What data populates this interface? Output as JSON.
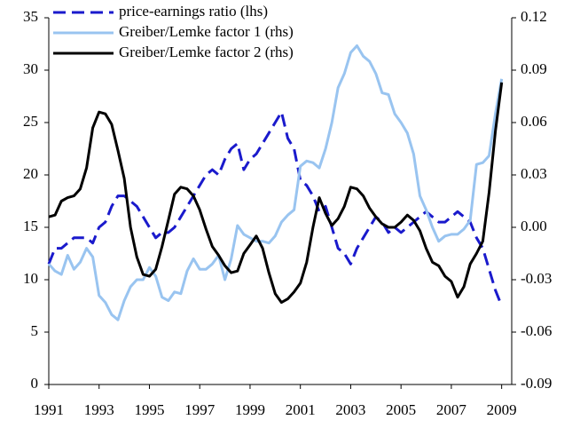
{
  "chart_data": {
    "type": "line",
    "x": [
      1991,
      1991.25,
      1991.5,
      1991.75,
      1992,
      1992.25,
      1992.5,
      1992.75,
      1993,
      1993.25,
      1993.5,
      1993.75,
      1994,
      1994.25,
      1994.5,
      1994.75,
      1995,
      1995.25,
      1995.5,
      1995.75,
      1996,
      1996.25,
      1996.5,
      1996.75,
      1997,
      1997.25,
      1997.5,
      1997.75,
      1998,
      1998.25,
      1998.5,
      1998.75,
      1999,
      1999.25,
      1999.5,
      1999.75,
      2000,
      2000.25,
      2000.5,
      2000.75,
      2001,
      2001.25,
      2001.5,
      2001.75,
      2002,
      2002.25,
      2002.5,
      2002.75,
      2003,
      2003.25,
      2003.5,
      2003.75,
      2004,
      2004.25,
      2004.5,
      2004.75,
      2005,
      2005.25,
      2005.5,
      2005.75,
      2006,
      2006.25,
      2006.5,
      2006.75,
      2007,
      2007.25,
      2007.5,
      2007.75,
      2008,
      2008.25,
      2008.5,
      2008.75,
      2009
    ],
    "series": [
      {
        "name": "price-earnings ratio (lhs)",
        "color": "#1a1acc",
        "dashed": true,
        "values": [
          11.5,
          13,
          13,
          13.5,
          14,
          14,
          14,
          13.5,
          15,
          15.5,
          17,
          18,
          18,
          17.5,
          17,
          16,
          15,
          14,
          14.5,
          14.5,
          15,
          16,
          17,
          18,
          19,
          20,
          20.5,
          20,
          21.5,
          22.5,
          23,
          20.5,
          21.5,
          22,
          23,
          24,
          25,
          26,
          23.5,
          22.5,
          19.5,
          19,
          18,
          16.5,
          17,
          15,
          13,
          12.5,
          11.5,
          13,
          14,
          15,
          16,
          15.5,
          14.5,
          15,
          14.5,
          15,
          15.5,
          16,
          16.5,
          16,
          15.5,
          15.5,
          16,
          16.5,
          16,
          15.5,
          14,
          13,
          11,
          9,
          7.5
        ]
      },
      {
        "name": "Greiber/Lemke factor 1 (rhs)",
        "color": "#99c4f0",
        "axis": "y2",
        "values": [
          -0.021,
          -0.025,
          -0.027,
          -0.016,
          -0.024,
          -0.02,
          -0.012,
          -0.017,
          -0.039,
          -0.043,
          -0.05,
          -0.053,
          -0.042,
          -0.034,
          -0.03,
          -0.03,
          -0.023,
          -0.028,
          -0.04,
          -0.042,
          -0.037,
          -0.038,
          -0.025,
          -0.018,
          -0.024,
          -0.024,
          -0.021,
          -0.016,
          -0.03,
          -0.018,
          0.001,
          -0.004,
          -0.006,
          -0.008,
          -0.008,
          -0.009,
          -0.005,
          0.003,
          0.007,
          0.01,
          0.035,
          0.038,
          0.037,
          0.034,
          0.045,
          0.06,
          0.08,
          0.088,
          0.1,
          0.104,
          0.098,
          0.095,
          0.088,
          0.077,
          0.076,
          0.065,
          0.06,
          0.054,
          0.042,
          0.018,
          0.01,
          0,
          -0.008,
          -0.005,
          -0.004,
          -0.004,
          -0.001,
          0.004,
          0.036,
          0.037,
          0.041,
          0.065,
          0.085
        ]
      },
      {
        "name": "Greiber/Lemke factor 2 (rhs)",
        "color": "#000000",
        "axis": "y2",
        "values": [
          0.006,
          0.007,
          0.015,
          0.017,
          0.018,
          0.022,
          0.034,
          0.057,
          0.066,
          0.065,
          0.059,
          0.044,
          0.028,
          0,
          -0.017,
          -0.027,
          -0.028,
          -0.024,
          -0.011,
          0.004,
          0.019,
          0.023,
          0.022,
          0.018,
          0.01,
          -0.001,
          -0.011,
          -0.016,
          -0.022,
          -0.026,
          -0.025,
          -0.015,
          -0.01,
          -0.005,
          -0.012,
          -0.026,
          -0.038,
          -0.043,
          -0.041,
          -0.037,
          -0.032,
          -0.02,
          0,
          0.017,
          0.008,
          0.001,
          0.005,
          0.012,
          0.023,
          0.022,
          0.018,
          0.011,
          0.006,
          0.002,
          0,
          0,
          0.003,
          0.007,
          0.004,
          -0.002,
          -0.012,
          -0.02,
          -0.022,
          -0.028,
          -0.031,
          -0.04,
          -0.034,
          -0.021,
          -0.015,
          -0.008,
          0.02,
          0.055,
          0.083
        ]
      }
    ],
    "xlim": [
      1991,
      2009.4
    ],
    "xticks": [
      1991,
      1993,
      1995,
      1997,
      1999,
      2001,
      2003,
      2005,
      2007,
      2009
    ],
    "ylim": [
      0,
      35
    ],
    "yticks": [
      0,
      5,
      10,
      15,
      20,
      25,
      30,
      35
    ],
    "y2lim": [
      -0.09,
      0.12
    ],
    "y2ticks": [
      -0.09,
      -0.06,
      -0.03,
      {
        "value": 0,
        "label": "0.00"
      },
      0.03,
      0.06,
      0.09,
      0.12
    ],
    "legend": "upper left"
  }
}
